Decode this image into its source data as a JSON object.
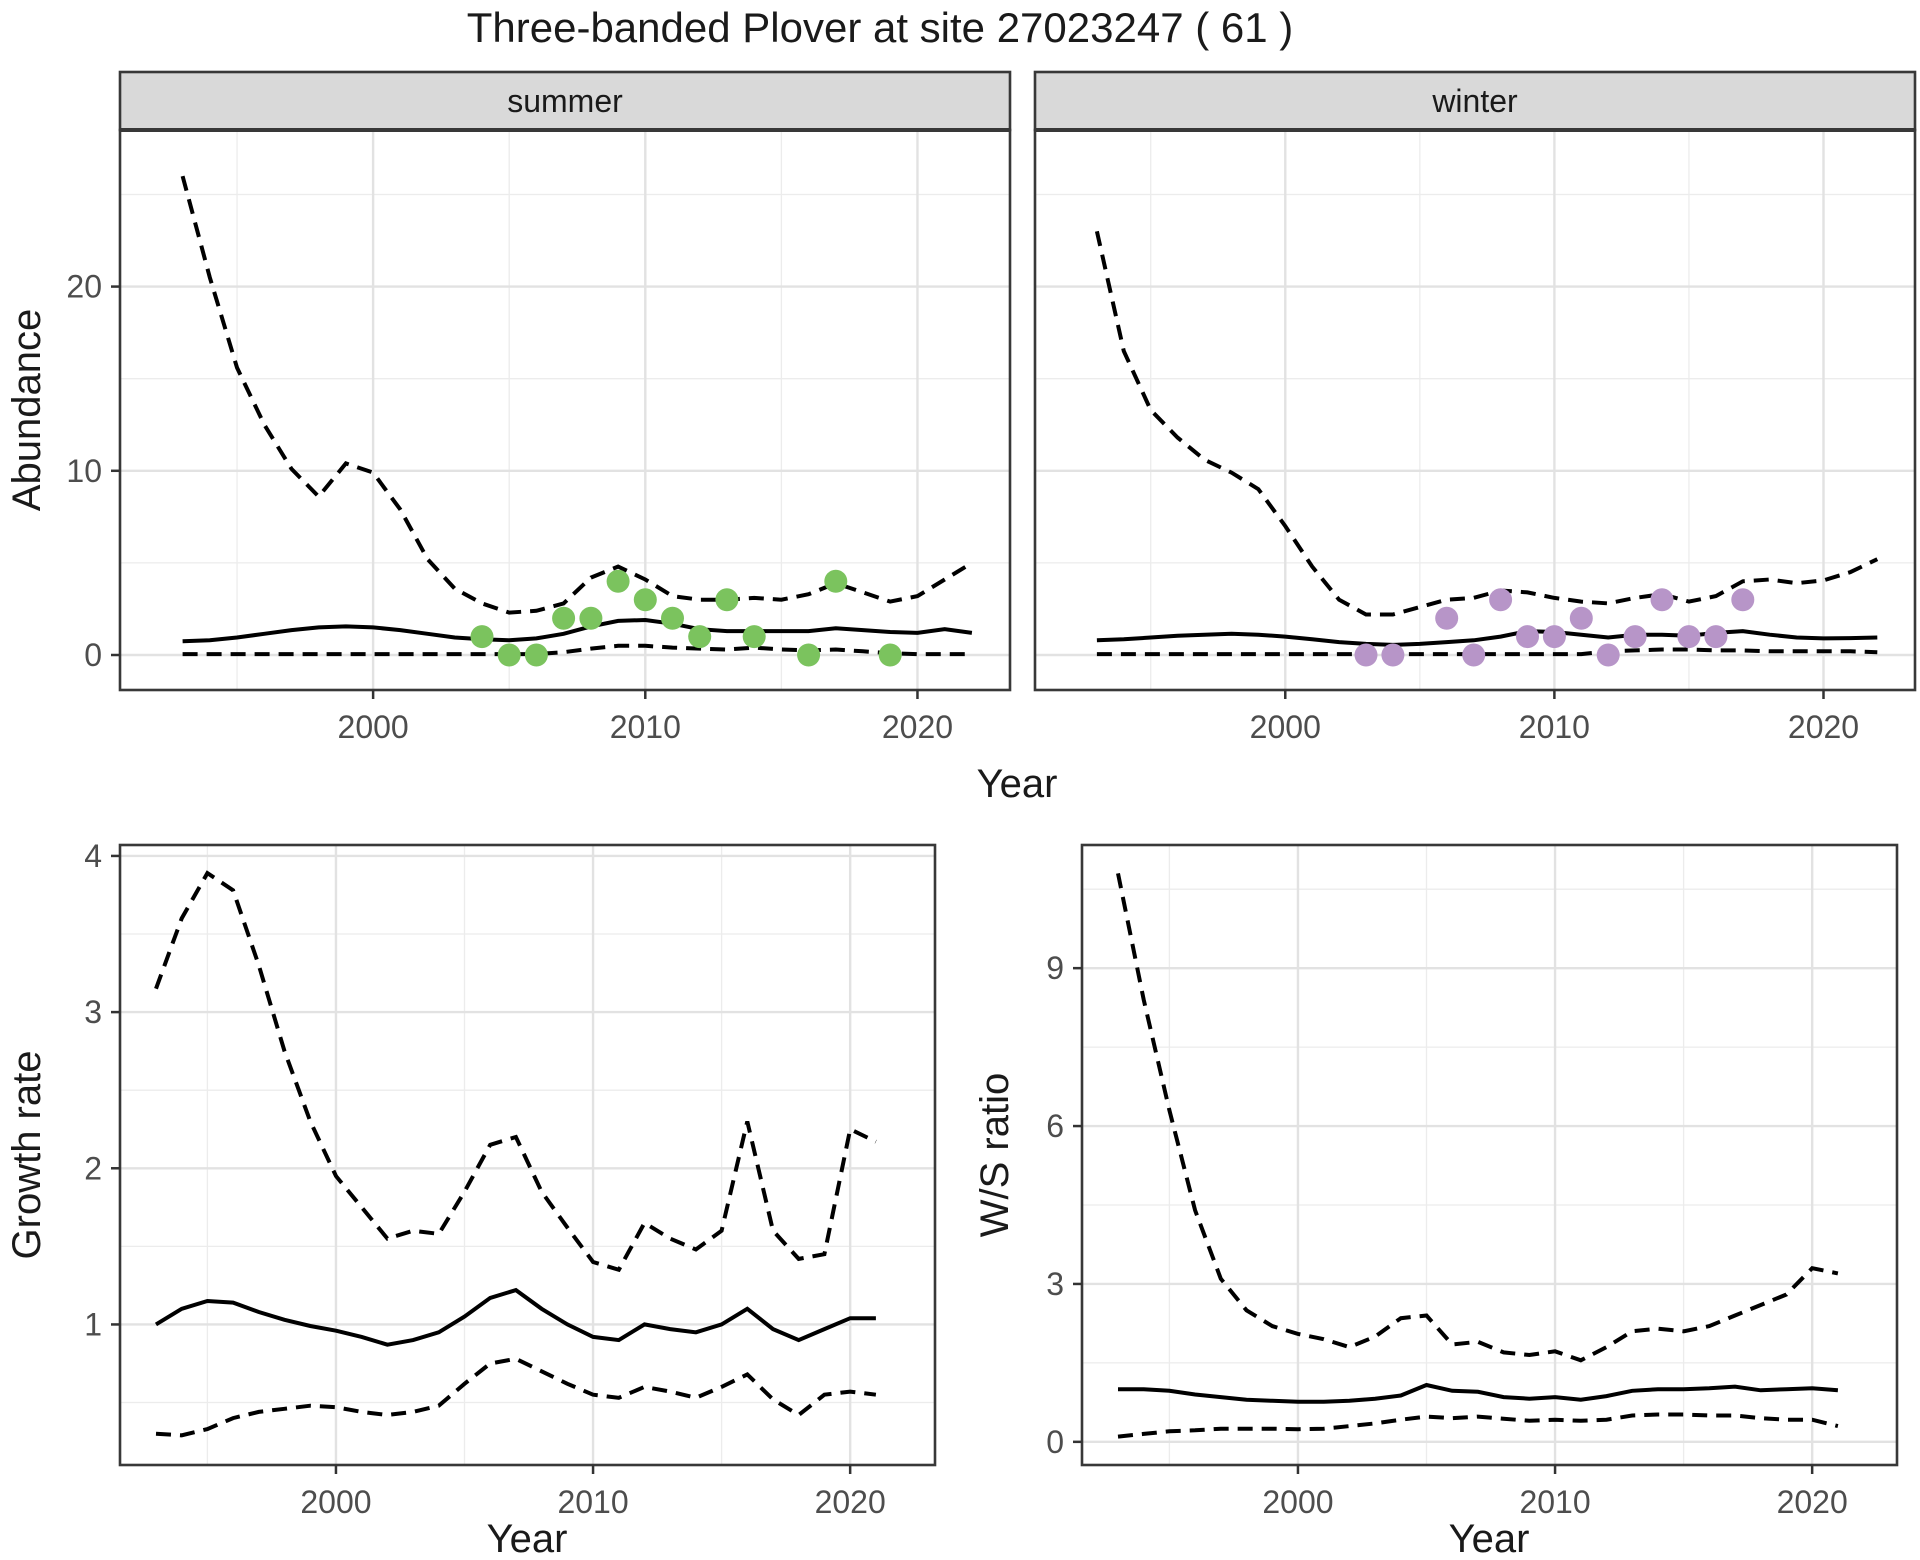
{
  "title": "Three-banded Plover at site 27023247 ( 61 )",
  "colors": {
    "summer_point": "#7bc35e",
    "winter_point": "#b795c8",
    "line": "#000000",
    "grid_major": "#e2e2e2",
    "grid_minor": "#ececec",
    "panel_border": "#383838",
    "strip_bg": "#d9d9d9",
    "tick_mark": "#333333",
    "tick_label": "#4d4d4d",
    "axis_title": "#1a1a1a",
    "panel_bg": "#ffffff"
  },
  "axes": {
    "abundance_label": "Abundance",
    "top_x_label": "Year",
    "growth_label": "Growth rate",
    "ws_label": "W/S ratio",
    "bottom_left_x_label": "Year",
    "bottom_right_x_label": "Year"
  },
  "chart_data": [
    {
      "id": "abundance-summer",
      "type": "line",
      "facet_label": "summer",
      "ylabel": "Abundance",
      "xlabel": "Year",
      "xlim": [
        1990.7,
        2023.4
      ],
      "ylim": [
        -1.9,
        28.5
      ],
      "xticks": [
        2000,
        2010,
        2020
      ],
      "yticks": [
        0,
        10,
        20
      ],
      "xminor": [
        1995,
        2005,
        2015
      ],
      "yminor": [
        5,
        15,
        25
      ],
      "x": [
        1993,
        1994,
        1995,
        1996,
        1997,
        1998,
        1999,
        2000,
        2001,
        2002,
        2003,
        2004,
        2005,
        2006,
        2007,
        2008,
        2009,
        2010,
        2011,
        2012,
        2013,
        2014,
        2015,
        2016,
        2017,
        2018,
        2019,
        2020,
        2021,
        2022
      ],
      "series": [
        {
          "name": "upper-95ci",
          "style": "dashed",
          "values": [
            26,
            20.5,
            15.6,
            12.5,
            10.1,
            8.6,
            10.4,
            9.9,
            7.9,
            5.2,
            3.6,
            2.8,
            2.3,
            2.4,
            2.8,
            4.2,
            4.8,
            4.1,
            3.2,
            3.0,
            3.0,
            3.1,
            3.0,
            3.3,
            3.9,
            3.4,
            2.9,
            3.2,
            4.1,
            5.0
          ]
        },
        {
          "name": "median",
          "style": "solid",
          "values": [
            0.75,
            0.8,
            0.95,
            1.15,
            1.35,
            1.5,
            1.55,
            1.5,
            1.35,
            1.15,
            0.95,
            0.85,
            0.8,
            0.9,
            1.15,
            1.55,
            1.85,
            1.9,
            1.7,
            1.4,
            1.3,
            1.3,
            1.3,
            1.3,
            1.45,
            1.35,
            1.25,
            1.2,
            1.4,
            1.2
          ]
        },
        {
          "name": "lower-95ci",
          "style": "dashed",
          "values": [
            0.05,
            0.05,
            0.05,
            0.05,
            0.05,
            0.05,
            0.05,
            0.05,
            0.05,
            0.05,
            0.05,
            0.05,
            0.05,
            0.05,
            0.15,
            0.35,
            0.5,
            0.5,
            0.4,
            0.35,
            0.3,
            0.4,
            0.3,
            0.25,
            0.3,
            0.2,
            0.1,
            0.05,
            0.05,
            0.05
          ]
        }
      ],
      "points": {
        "name": "summer-observed-counts",
        "color_key": "summer_point",
        "data": [
          [
            2004,
            1
          ],
          [
            2005,
            0
          ],
          [
            2006,
            0
          ],
          [
            2007,
            2
          ],
          [
            2008,
            2
          ],
          [
            2009,
            4
          ],
          [
            2010,
            3
          ],
          [
            2011,
            2
          ],
          [
            2012,
            1
          ],
          [
            2013,
            3
          ],
          [
            2014,
            1
          ],
          [
            2016,
            0
          ],
          [
            2017,
            4
          ],
          [
            2019,
            0
          ]
        ]
      }
    },
    {
      "id": "abundance-winter",
      "type": "line",
      "facet_label": "winter",
      "ylabel": "Abundance",
      "xlabel": "Year",
      "xlim": [
        1990.7,
        2023.4
      ],
      "ylim": [
        -1.9,
        28.5
      ],
      "xticks": [
        2000,
        2010,
        2020
      ],
      "yticks": [
        0,
        10,
        20
      ],
      "xminor": [
        1995,
        2005,
        2015
      ],
      "yminor": [
        5,
        15,
        25
      ],
      "x": [
        1993,
        1994,
        1995,
        1996,
        1997,
        1998,
        1999,
        2000,
        2001,
        2002,
        2003,
        2004,
        2005,
        2006,
        2007,
        2008,
        2009,
        2010,
        2011,
        2012,
        2013,
        2014,
        2015,
        2016,
        2017,
        2018,
        2019,
        2020,
        2021,
        2022
      ],
      "series": [
        {
          "name": "upper-95ci",
          "style": "dashed",
          "values": [
            23,
            16.5,
            13.3,
            11.8,
            10.6,
            9.9,
            9.0,
            7.0,
            4.8,
            3.0,
            2.2,
            2.2,
            2.6,
            3.0,
            3.1,
            3.5,
            3.4,
            3.1,
            2.9,
            2.8,
            3.1,
            3.3,
            2.9,
            3.2,
            4.0,
            4.1,
            3.9,
            4.05,
            4.5,
            5.2
          ]
        },
        {
          "name": "median",
          "style": "solid",
          "values": [
            0.8,
            0.85,
            0.95,
            1.05,
            1.1,
            1.15,
            1.1,
            1.0,
            0.85,
            0.7,
            0.6,
            0.55,
            0.6,
            0.7,
            0.8,
            1.0,
            1.3,
            1.25,
            1.1,
            0.95,
            1.1,
            1.1,
            1.05,
            1.2,
            1.3,
            1.1,
            0.95,
            0.9,
            0.92,
            0.95
          ]
        },
        {
          "name": "lower-95ci",
          "style": "dashed",
          "values": [
            0.05,
            0.05,
            0.05,
            0.05,
            0.05,
            0.05,
            0.05,
            0.05,
            0.05,
            0.05,
            0.05,
            0.05,
            0.05,
            0.05,
            0.05,
            0.05,
            0.05,
            0.05,
            0.05,
            0.2,
            0.25,
            0.3,
            0.3,
            0.25,
            0.25,
            0.2,
            0.2,
            0.2,
            0.2,
            0.15
          ]
        }
      ],
      "points": {
        "name": "winter-observed-counts",
        "color_key": "winter_point",
        "data": [
          [
            2003,
            0
          ],
          [
            2004,
            0
          ],
          [
            2006,
            2
          ],
          [
            2007,
            0
          ],
          [
            2008,
            3
          ],
          [
            2009,
            1
          ],
          [
            2010,
            1
          ],
          [
            2011,
            2
          ],
          [
            2012,
            0
          ],
          [
            2013,
            1
          ],
          [
            2014,
            3
          ],
          [
            2015,
            1
          ],
          [
            2016,
            1
          ],
          [
            2017,
            3
          ]
        ]
      }
    },
    {
      "id": "growth-rate",
      "type": "line",
      "facet_label": "",
      "ylabel": "Growth rate",
      "xlabel": "Year",
      "xlim": [
        1991.6,
        2023.3
      ],
      "ylim": [
        0.1,
        4.07
      ],
      "xticks": [
        2000,
        2010,
        2020
      ],
      "yticks": [
        1,
        2,
        3,
        4
      ],
      "xminor": [
        1995,
        2005,
        2015
      ],
      "yminor": [
        0.5,
        1.5,
        2.5,
        3.5
      ],
      "x": [
        1993,
        1994,
        1995,
        1996,
        1997,
        1998,
        1999,
        2000,
        2001,
        2002,
        2003,
        2004,
        2005,
        2006,
        2007,
        2008,
        2009,
        2010,
        2011,
        2012,
        2013,
        2014,
        2015,
        2016,
        2017,
        2018,
        2019,
        2020,
        2021
      ],
      "series": [
        {
          "name": "upper-95ci",
          "style": "dashed",
          "values": [
            3.15,
            3.6,
            3.89,
            3.78,
            3.3,
            2.75,
            2.3,
            1.95,
            1.75,
            1.55,
            1.6,
            1.58,
            1.85,
            2.15,
            2.2,
            1.85,
            1.62,
            1.4,
            1.35,
            1.65,
            1.55,
            1.48,
            1.6,
            2.3,
            1.6,
            1.42,
            1.45,
            2.25,
            2.17
          ]
        },
        {
          "name": "median",
          "style": "solid",
          "values": [
            1.0,
            1.1,
            1.15,
            1.14,
            1.08,
            1.03,
            0.99,
            0.96,
            0.92,
            0.87,
            0.9,
            0.95,
            1.05,
            1.17,
            1.22,
            1.1,
            1.0,
            0.92,
            0.9,
            1.0,
            0.97,
            0.95,
            1.0,
            1.1,
            0.97,
            0.9,
            0.97,
            1.04,
            1.04
          ]
        },
        {
          "name": "lower-95ci",
          "style": "dashed",
          "values": [
            0.3,
            0.29,
            0.33,
            0.4,
            0.44,
            0.46,
            0.48,
            0.47,
            0.44,
            0.42,
            0.44,
            0.48,
            0.62,
            0.75,
            0.78,
            0.7,
            0.62,
            0.55,
            0.53,
            0.6,
            0.57,
            0.53,
            0.6,
            0.68,
            0.52,
            0.42,
            0.55,
            0.57,
            0.55
          ]
        }
      ],
      "points": null
    },
    {
      "id": "ws-ratio",
      "type": "line",
      "facet_label": "",
      "ylabel": "W/S ratio",
      "xlabel": "Year",
      "xlim": [
        1991.6,
        2023.3
      ],
      "ylim": [
        -0.44,
        11.34
      ],
      "xticks": [
        2000,
        2010,
        2020
      ],
      "yticks": [
        0,
        3,
        6,
        9
      ],
      "xminor": [
        1995,
        2005,
        2015
      ],
      "yminor": [
        1.5,
        4.5,
        7.5,
        10.5
      ],
      "x": [
        1993,
        1994,
        1995,
        1996,
        1997,
        1998,
        1999,
        2000,
        2001,
        2002,
        2003,
        2004,
        2005,
        2006,
        2007,
        2008,
        2009,
        2010,
        2011,
        2012,
        2013,
        2014,
        2015,
        2016,
        2017,
        2018,
        2019,
        2020,
        2021
      ],
      "series": [
        {
          "name": "upper-95ci",
          "style": "dashed",
          "values": [
            10.8,
            8.4,
            6.3,
            4.4,
            3.1,
            2.5,
            2.2,
            2.05,
            1.95,
            1.8,
            2.0,
            2.35,
            2.4,
            1.85,
            1.9,
            1.7,
            1.65,
            1.72,
            1.55,
            1.8,
            2.1,
            2.15,
            2.1,
            2.2,
            2.4,
            2.6,
            2.8,
            3.3,
            3.2
          ]
        },
        {
          "name": "median",
          "style": "solid",
          "values": [
            1.0,
            1.0,
            0.97,
            0.9,
            0.85,
            0.8,
            0.78,
            0.76,
            0.76,
            0.78,
            0.82,
            0.88,
            1.08,
            0.97,
            0.95,
            0.85,
            0.82,
            0.85,
            0.8,
            0.87,
            0.97,
            1.0,
            1.0,
            1.02,
            1.05,
            0.98,
            1.0,
            1.02,
            0.98
          ]
        },
        {
          "name": "lower-95ci",
          "style": "dashed",
          "values": [
            0.1,
            0.15,
            0.2,
            0.22,
            0.25,
            0.25,
            0.25,
            0.24,
            0.25,
            0.3,
            0.35,
            0.42,
            0.48,
            0.45,
            0.48,
            0.44,
            0.4,
            0.42,
            0.4,
            0.42,
            0.5,
            0.52,
            0.52,
            0.5,
            0.5,
            0.45,
            0.42,
            0.42,
            0.3
          ]
        }
      ],
      "points": null
    }
  ]
}
